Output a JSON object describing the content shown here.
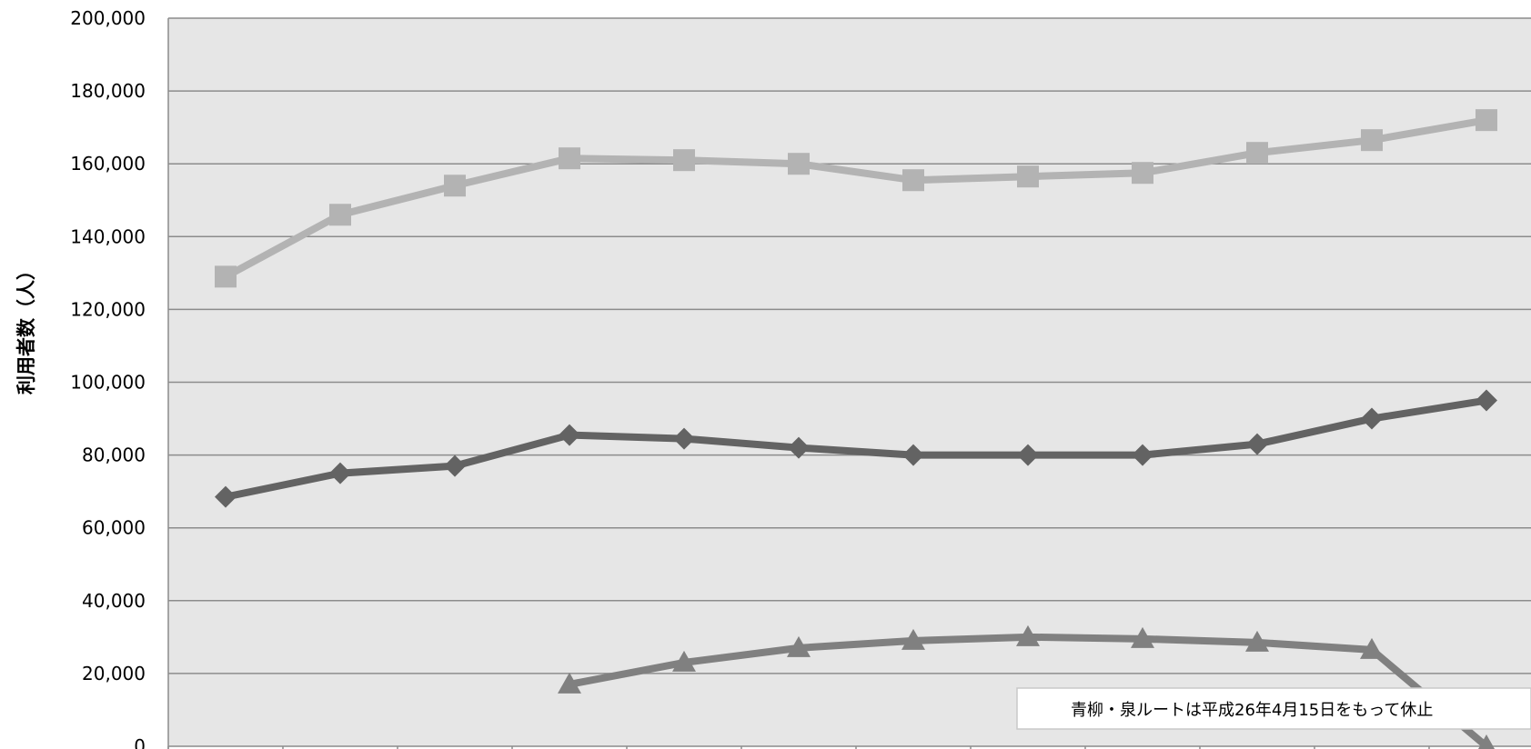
{
  "chart_data": {
    "type": "line",
    "ylabel": "利用者数（人）",
    "ylim": [
      0,
      200000
    ],
    "yticks": [
      0,
      20000,
      40000,
      60000,
      80000,
      100000,
      120000,
      140000,
      160000,
      180000,
      200000
    ],
    "ytick_labels": [
      "0",
      "20,000",
      "40,000",
      "60,000",
      "80,000",
      "100,000",
      "120,000",
      "140,000",
      "160,000",
      "180,000",
      "200,000"
    ],
    "grid": true,
    "legend": "none",
    "colors": {
      "plot_background": "#e6e6e6",
      "gridline": "#8c8c8c",
      "series_light": "#b3b3b3",
      "series_dark": "#636363",
      "series_mid": "#808080"
    },
    "series": [
      {
        "marker": "square",
        "color": "#b3b3b3",
        "x": [
          1,
          2,
          3,
          4,
          5,
          6,
          7,
          8,
          9,
          10,
          11,
          12
        ],
        "values": [
          129000,
          146000,
          154000,
          161500,
          161000,
          160000,
          155500,
          156500,
          157500,
          163000,
          166500,
          172000
        ]
      },
      {
        "marker": "diamond",
        "color": "#636363",
        "x": [
          1,
          2,
          3,
          4,
          5,
          6,
          7,
          8,
          9,
          10,
          11,
          12
        ],
        "values": [
          68500,
          75000,
          77000,
          85500,
          84500,
          82000,
          80000,
          80000,
          80000,
          83000,
          90000,
          95000
        ]
      },
      {
        "marker": "triangle",
        "color": "#808080",
        "x": [
          4,
          5,
          6,
          7,
          8,
          9,
          10,
          11,
          12
        ],
        "values": [
          17000,
          23000,
          27000,
          29000,
          30000,
          29500,
          28500,
          26500,
          0
        ]
      }
    ],
    "annotation": "青柳・泉ルートは平成26年4月15日をもって休止"
  }
}
